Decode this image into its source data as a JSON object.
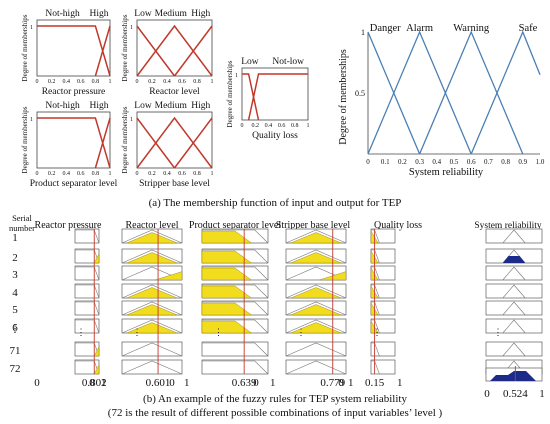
{
  "colors": {
    "red": "#c0392b",
    "blue": "#4a7fb5",
    "yellow": "#f2dc1e",
    "navy": "#1c2a8a",
    "frame": "#444444"
  },
  "panel_a": {
    "small_charts": [
      {
        "id": "reactor-pressure",
        "xlabel": "Reactor pressure",
        "ylabel": "Degree of memberships",
        "levels": [
          "Not-high",
          "High"
        ],
        "ticks": [
          "0",
          "0.2",
          "0.4",
          "0.6",
          "0.8",
          "1"
        ],
        "ytick": "1"
      },
      {
        "id": "reactor-level",
        "xlabel": "Reactor level",
        "ylabel": "Degree of memberships",
        "levels": [
          "Low",
          "Medium",
          "High"
        ],
        "ticks": [
          "0",
          "0.2",
          "0.4",
          "0.6",
          "0.8",
          "1"
        ],
        "ytick": "1"
      },
      {
        "id": "quality-loss",
        "xlabel": "Quality loss",
        "ylabel": "Degree of memberships",
        "levels": [
          "Low",
          "Not-low"
        ],
        "ticks": [
          "0",
          "0.2",
          "0.4",
          "0.6",
          "0.8",
          "1"
        ],
        "ytick": "1"
      },
      {
        "id": "product-separator-level",
        "xlabel": "Product separator level",
        "ylabel": "Degree of memberships",
        "levels": [
          "Not-high",
          "High"
        ],
        "ticks": [
          "0",
          "0.2",
          "0.4",
          "0.6",
          "0.8",
          "1"
        ],
        "ytick": "1"
      },
      {
        "id": "stripper-base-level",
        "xlabel": "Stripper base level",
        "ylabel": "Degree of memberships",
        "levels": [
          "Low",
          "Medium",
          "High"
        ],
        "ticks": [
          "0",
          "0.2",
          "0.4",
          "0.6",
          "0.8",
          "1"
        ],
        "ytick": "1"
      }
    ],
    "output_chart": {
      "xlabel": "System reliability",
      "ylabel": "Degree of memberships",
      "levels": [
        "Danger",
        "Alarm",
        "Warning",
        "Safe"
      ],
      "xticks": [
        "0",
        "0.1",
        "0.2",
        "0.3",
        "0.4",
        "0.5",
        "0.6",
        "0.7",
        "0.8",
        "0.9",
        "1.0"
      ],
      "yticks": [
        "1",
        "0.5"
      ]
    },
    "caption": "(a) The membership function of input and output for TEP"
  },
  "panel_b": {
    "serial_header": "Serial\nnumber",
    "columns": [
      "Reactor pressure",
      "Reactor level",
      "Product separator level",
      "Stripper base level",
      "Quality loss"
    ],
    "output_column": "System reliability",
    "rows": [
      "1",
      "2",
      "3",
      "4",
      "5",
      "6",
      "⋮",
      "71",
      "72"
    ],
    "input_values": [
      "0.802",
      "0.601",
      "0.639",
      "0.779",
      "0.15"
    ],
    "axis_labels": [
      [
        "0",
        "1"
      ],
      [
        "0",
        "1"
      ],
      [
        "0",
        "1"
      ],
      [
        "0",
        "1"
      ],
      [
        "0",
        "1"
      ]
    ],
    "output_value": "0.524",
    "output_axis": [
      "0",
      "1"
    ],
    "caption_line1": "(b) An example of the fuzzy rules for TEP system reliability",
    "caption_line2": "(72 is the result of different possible combinations of input variables’ level )"
  }
}
